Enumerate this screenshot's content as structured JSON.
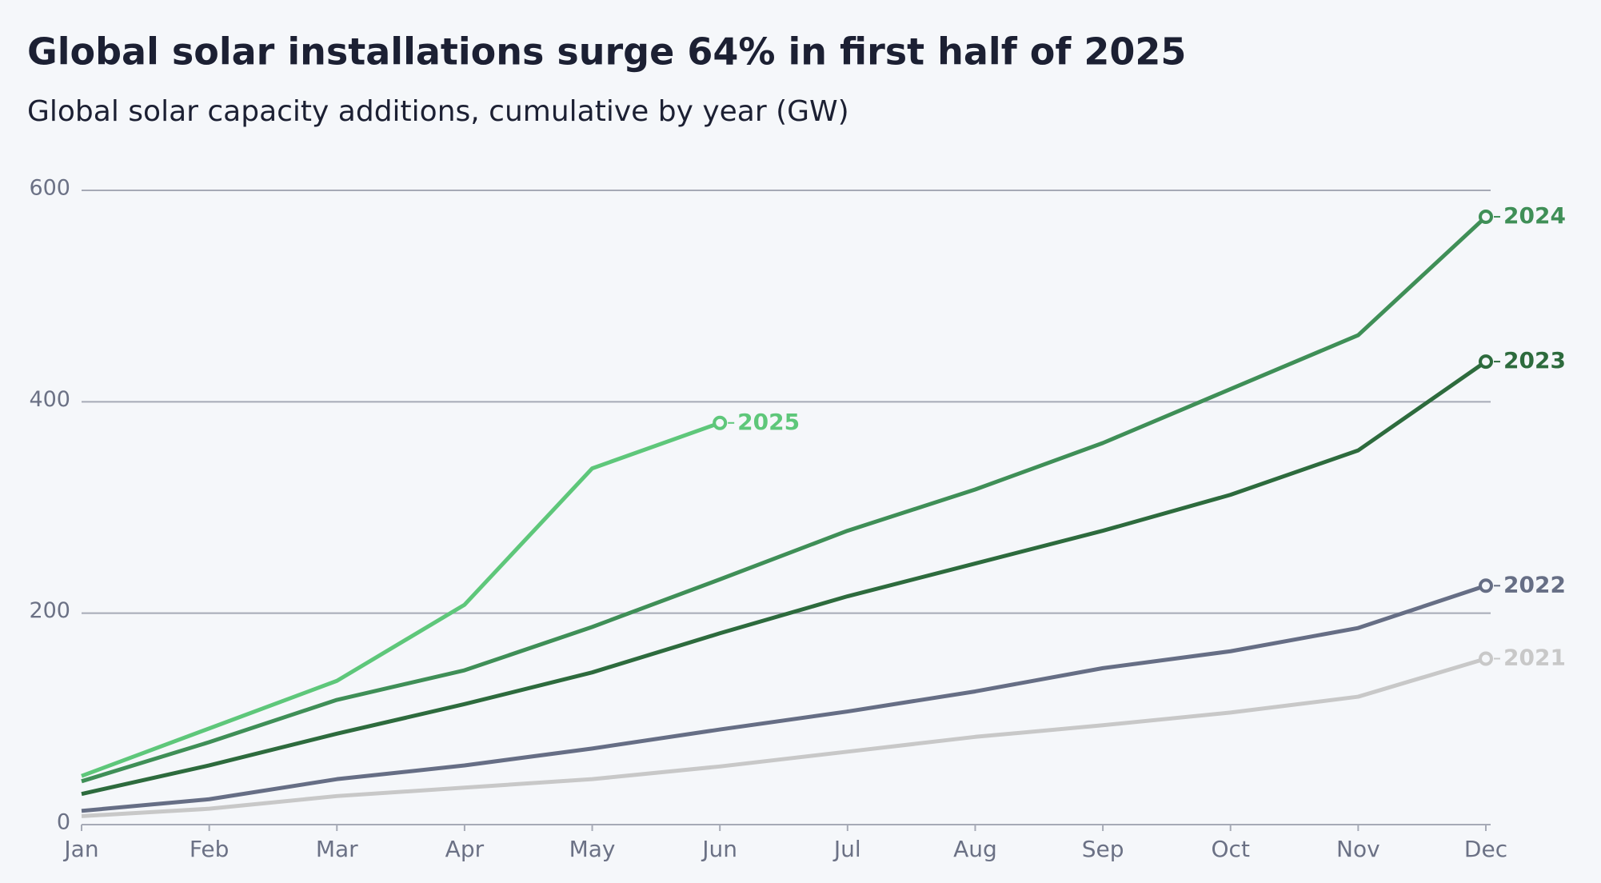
{
  "chart_data": {
    "type": "line",
    "title": "Global solar installations surge 64% in first half of 2025",
    "subtitle": "Global solar capacity additions, cumulative by year (GW)",
    "categories": [
      "Jan",
      "Feb",
      "Mar",
      "Apr",
      "May",
      "Jun",
      "Jul",
      "Aug",
      "Sep",
      "Oct",
      "Nov",
      "Dec"
    ],
    "series": [
      {
        "name": "2021",
        "color": "#c8c8c8",
        "values": [
          8,
          15,
          27,
          35,
          43,
          55,
          69,
          83,
          94,
          106,
          121,
          157
        ]
      },
      {
        "name": "2022",
        "color": "#666e85",
        "values": [
          13,
          24,
          43,
          56,
          72,
          90,
          107,
          126,
          148,
          164,
          186,
          226
        ]
      },
      {
        "name": "2023",
        "color": "#2d6b3d",
        "values": [
          29,
          56,
          86,
          114,
          144,
          181,
          216,
          247,
          278,
          312,
          354,
          438
        ]
      },
      {
        "name": "2024",
        "color": "#3f8f57",
        "values": [
          41,
          78,
          118,
          146,
          187,
          232,
          278,
          317,
          361,
          412,
          463,
          575
        ]
      },
      {
        "name": "2025",
        "color": "#5ec77a",
        "values": [
          46,
          91,
          136,
          208,
          337,
          380,
          null,
          null,
          null,
          null,
          null,
          null
        ]
      }
    ],
    "ylim": [
      0,
      600
    ],
    "yticks": [
      0,
      200,
      400,
      600
    ],
    "grid": true
  }
}
